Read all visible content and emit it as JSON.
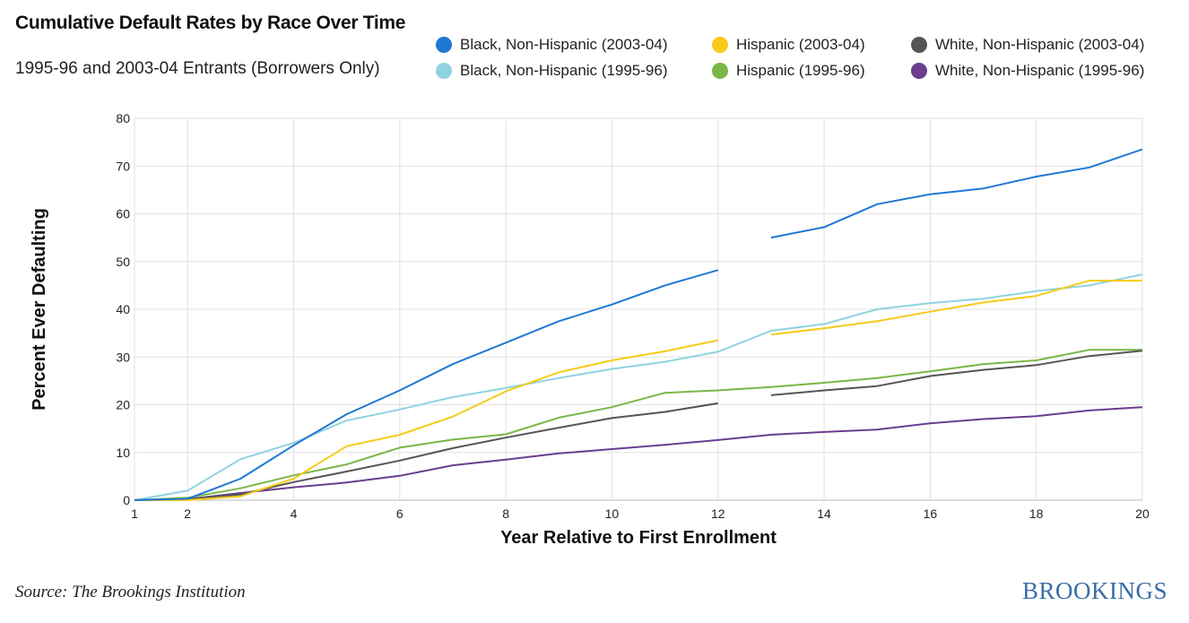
{
  "title": "Cumulative Default Rates by Race Over Time",
  "subtitle": "1995-96 and 2003-04 Entrants (Borrowers Only)",
  "source": "Source: The Brookings Institution",
  "brand": "BROOKINGS",
  "chart_data": {
    "type": "line",
    "title": "Cumulative Default Rates by Race Over Time",
    "subtitle": "1995-96 and 2003-04 Entrants (Borrowers Only)",
    "xlabel": "Year Relative to First Enrollment",
    "ylabel": "Percent Ever Defaulting",
    "xlim": [
      1,
      20
    ],
    "ylim": [
      0,
      80
    ],
    "x_ticks": [
      1,
      2,
      4,
      6,
      8,
      10,
      12,
      14,
      16,
      18,
      20
    ],
    "y_ticks": [
      0,
      10,
      20,
      30,
      40,
      50,
      60,
      70,
      80
    ],
    "grid": true,
    "legend_position": "top-right",
    "series": [
      {
        "name": "Black, Non-Hispanic (2003-04)",
        "color": "#1f77d4",
        "points": [
          [
            1,
            0
          ],
          [
            2,
            0.3
          ],
          [
            3,
            4.5
          ],
          [
            4,
            11.5
          ],
          [
            5,
            18
          ],
          [
            6,
            23
          ],
          [
            7,
            28.5
          ],
          [
            8,
            33
          ],
          [
            9,
            37.5
          ],
          [
            10,
            41
          ],
          [
            11,
            45
          ],
          [
            12,
            48.2
          ],
          [
            13,
            null
          ],
          [
            13,
            55
          ],
          [
            14,
            57.2
          ],
          [
            15,
            62
          ],
          [
            16,
            64.1
          ],
          [
            17,
            65.3
          ],
          [
            18,
            67.8
          ],
          [
            19,
            69.7
          ],
          [
            20,
            73.5
          ]
        ]
      },
      {
        "name": "Hispanic (2003-04)",
        "color": "#f6cb1a",
        "points": [
          [
            1,
            0
          ],
          [
            2,
            0
          ],
          [
            3,
            0.8
          ],
          [
            4,
            4.5
          ],
          [
            5,
            11.3
          ],
          [
            6,
            13.7
          ],
          [
            7,
            17.5
          ],
          [
            8,
            22.8
          ],
          [
            9,
            26.8
          ],
          [
            10,
            29.3
          ],
          [
            11,
            31.2
          ],
          [
            12,
            33.5
          ],
          [
            13,
            null
          ],
          [
            13,
            34.7
          ],
          [
            14,
            36
          ],
          [
            15,
            37.5
          ],
          [
            16,
            39.5
          ],
          [
            17,
            41.4
          ],
          [
            18,
            42.8
          ],
          [
            19,
            46
          ],
          [
            20,
            46
          ]
        ]
      },
      {
        "name": "White, Non-Hispanic (2003-04)",
        "color": "#555555",
        "points": [
          [
            1,
            0
          ],
          [
            2,
            0.2
          ],
          [
            3,
            1.2
          ],
          [
            4,
            3.8
          ],
          [
            5,
            6
          ],
          [
            6,
            8.3
          ],
          [
            7,
            10.9
          ],
          [
            8,
            13.1
          ],
          [
            9,
            15.2
          ],
          [
            10,
            17.2
          ],
          [
            11,
            18.5
          ],
          [
            12,
            20.3
          ],
          [
            13,
            null
          ],
          [
            13,
            22
          ],
          [
            14,
            23
          ],
          [
            15,
            23.9
          ],
          [
            16,
            26
          ],
          [
            17,
            27.3
          ],
          [
            18,
            28.3
          ],
          [
            19,
            30.2
          ],
          [
            20,
            31.3
          ]
        ]
      },
      {
        "name": "Black, Non-Hispanic (1995-96)",
        "color": "#8fd3e0",
        "points": [
          [
            1,
            0
          ],
          [
            2,
            2
          ],
          [
            3,
            8.6
          ],
          [
            4,
            12
          ],
          [
            5,
            16.7
          ],
          [
            6,
            19
          ],
          [
            7,
            21.6
          ],
          [
            8,
            23.5
          ],
          [
            9,
            25.6
          ],
          [
            10,
            27.5
          ],
          [
            11,
            29
          ],
          [
            12,
            31.1
          ],
          [
            13,
            35.5
          ],
          [
            14,
            36.9
          ],
          [
            15,
            40
          ],
          [
            16,
            41.3
          ],
          [
            17,
            42.2
          ],
          [
            18,
            43.8
          ],
          [
            19,
            45
          ],
          [
            20,
            47.3
          ]
        ]
      },
      {
        "name": "Hispanic (1995-96)",
        "color": "#7ab648",
        "points": [
          [
            1,
            0
          ],
          [
            2,
            0.5
          ],
          [
            3,
            2.5
          ],
          [
            4,
            5.2
          ],
          [
            5,
            7.5
          ],
          [
            6,
            11
          ],
          [
            7,
            12.7
          ],
          [
            8,
            13.8
          ],
          [
            9,
            17.3
          ],
          [
            10,
            19.5
          ],
          [
            11,
            22.5
          ],
          [
            12,
            23
          ],
          [
            13,
            23.7
          ],
          [
            14,
            24.6
          ],
          [
            15,
            25.6
          ],
          [
            16,
            27
          ],
          [
            17,
            28.5
          ],
          [
            18,
            29.3
          ],
          [
            19,
            31.5
          ],
          [
            20,
            31.5
          ]
        ]
      },
      {
        "name": "White, Non-Hispanic (1995-96)",
        "color": "#6a3d8f",
        "points": [
          [
            1,
            0
          ],
          [
            2,
            0.2
          ],
          [
            3,
            1.5
          ],
          [
            4,
            2.7
          ],
          [
            5,
            3.7
          ],
          [
            6,
            5.1
          ],
          [
            7,
            7.3
          ],
          [
            8,
            8.5
          ],
          [
            9,
            9.8
          ],
          [
            10,
            10.7
          ],
          [
            11,
            11.6
          ],
          [
            12,
            12.6
          ],
          [
            13,
            13.7
          ],
          [
            14,
            14.3
          ],
          [
            15,
            14.8
          ],
          [
            16,
            16.1
          ],
          [
            17,
            17
          ],
          [
            18,
            17.6
          ],
          [
            19,
            18.8
          ],
          [
            20,
            19.5
          ]
        ]
      }
    ]
  }
}
